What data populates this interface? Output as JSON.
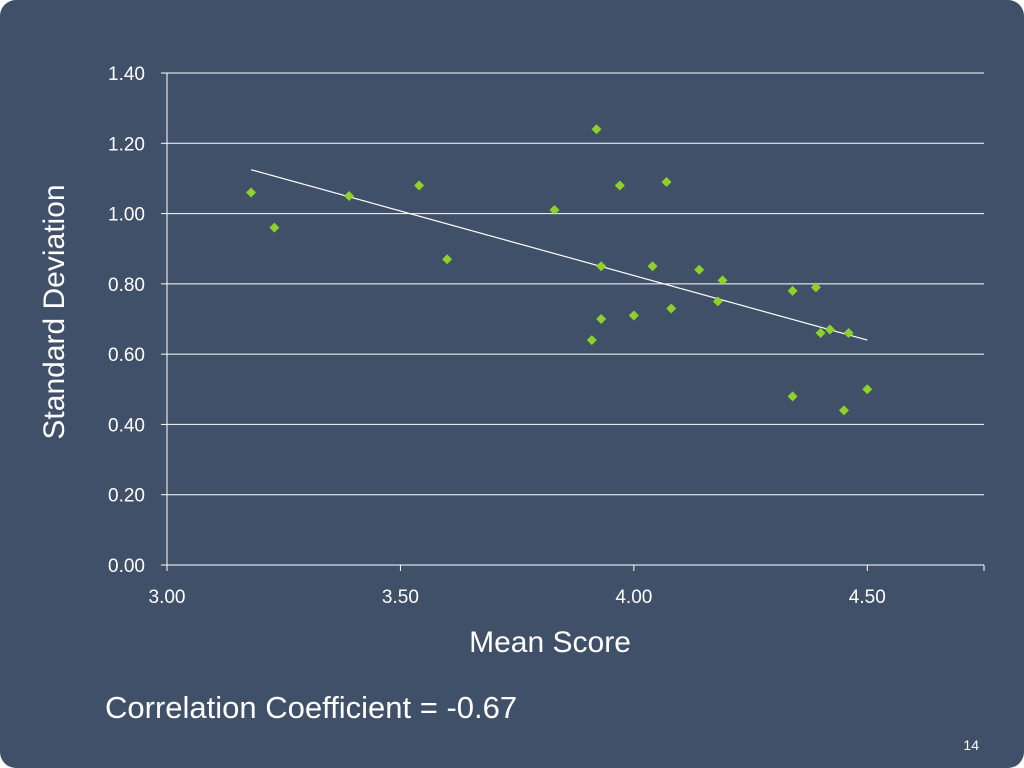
{
  "slide": {
    "background_color": "#3f5068",
    "correlation_text": "Correlation Coefficient = -0.67",
    "page_number": "14"
  },
  "chart_data": {
    "type": "scatter",
    "title": "",
    "xlabel": "Mean Score",
    "ylabel": "Standard Deviation",
    "xlim": [
      3.0,
      4.75
    ],
    "ylim": [
      0.0,
      1.4
    ],
    "x_ticks": [
      3.0,
      3.5,
      4.0,
      4.5
    ],
    "x_tick_labels": [
      "3.00",
      "3.50",
      "4.00",
      "4.50"
    ],
    "y_ticks": [
      0.0,
      0.2,
      0.4,
      0.6,
      0.8,
      1.0,
      1.2,
      1.4
    ],
    "y_tick_labels": [
      "0.00",
      "0.20",
      "0.40",
      "0.60",
      "0.80",
      "1.00",
      "1.20",
      "1.40"
    ],
    "grid": true,
    "legend": "none",
    "marker": "diamond",
    "marker_color": "#8fd12a",
    "trendline_color": "#ffffff",
    "gridline_color": "#ffffff",
    "series": [
      {
        "x": [
          3.18,
          3.23,
          3.39,
          3.54,
          3.6,
          3.83,
          3.91,
          3.92,
          3.93,
          3.93,
          3.97,
          4.0,
          4.04,
          4.07,
          4.08,
          4.14,
          4.18,
          4.19,
          4.34,
          4.34,
          4.39,
          4.4,
          4.42,
          4.45,
          4.46,
          4.5
        ],
        "y": [
          1.06,
          0.96,
          1.05,
          1.08,
          0.87,
          1.01,
          0.64,
          1.24,
          0.85,
          0.7,
          1.08,
          0.71,
          0.85,
          1.09,
          0.73,
          0.84,
          0.75,
          0.81,
          0.78,
          0.48,
          0.79,
          0.66,
          0.67,
          0.44,
          0.66,
          0.5
        ]
      }
    ],
    "trendline": {
      "x": [
        3.18,
        4.5
      ],
      "y": [
        1.125,
        0.64
      ]
    }
  }
}
